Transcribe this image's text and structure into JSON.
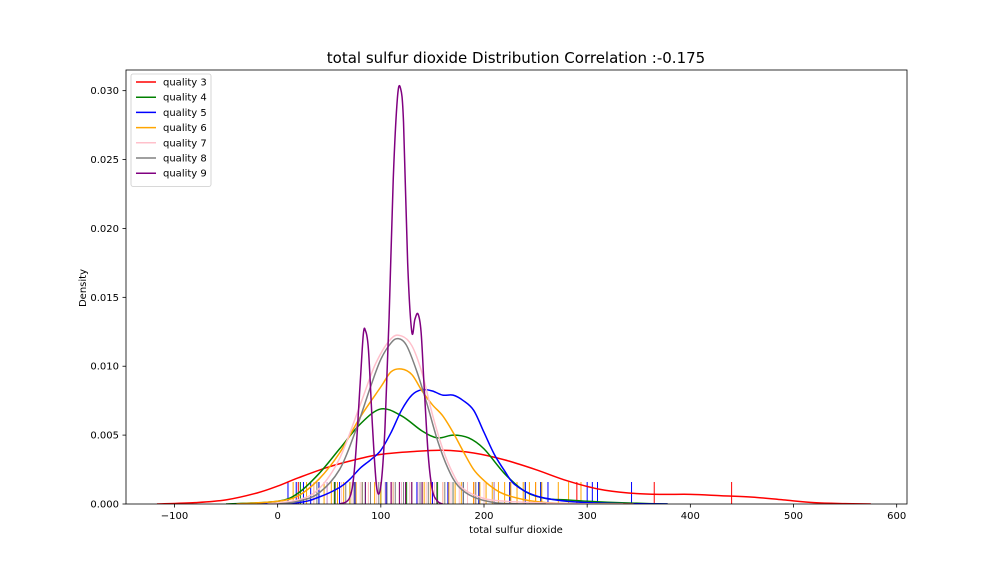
{
  "chart_data": {
    "type": "line",
    "title": "total sulfur dioxide Distribution Correlation :-0.175",
    "xlabel": "total sulfur dioxide",
    "ylabel": "Density",
    "xlim": [
      -147,
      610
    ],
    "ylim": [
      0,
      0.0315
    ],
    "xticks": [
      -100,
      0,
      100,
      200,
      300,
      400,
      500,
      600
    ],
    "xtick_labels": [
      "−100",
      "0",
      "100",
      "200",
      "300",
      "400",
      "500",
      "600"
    ],
    "yticks": [
      0.0,
      0.005,
      0.01,
      0.015,
      0.02,
      0.025,
      0.03
    ],
    "ytick_labels": [
      "0.000",
      "0.005",
      "0.010",
      "0.015",
      "0.020",
      "0.025",
      "0.030"
    ],
    "grid": false,
    "legend_position": "top-left",
    "series": [
      {
        "name": "quality 3",
        "color": "#ff0000",
        "x": [
          -117,
          -80,
          -50,
          -20,
          0,
          20,
          50,
          80,
          100,
          130,
          160,
          190,
          220,
          250,
          280,
          310,
          340,
          370,
          400,
          430,
          460,
          490,
          520,
          550,
          575
        ],
        "y": [
          0.0,
          0.0001,
          0.0003,
          0.0008,
          0.0013,
          0.0019,
          0.0027,
          0.0033,
          0.0036,
          0.0038,
          0.0039,
          0.0037,
          0.0032,
          0.0025,
          0.0017,
          0.0011,
          0.0008,
          0.0007,
          0.0007,
          0.0006,
          0.0005,
          0.0003,
          0.0001,
          3e-05,
          0.0
        ]
      },
      {
        "name": "quality 4",
        "color": "#008000",
        "x": [
          -50,
          0,
          20,
          40,
          60,
          80,
          100,
          120,
          140,
          155,
          170,
          185,
          200,
          220,
          240,
          260,
          280,
          300,
          330,
          360,
          378
        ],
        "y": [
          0.0,
          0.0002,
          0.0008,
          0.0022,
          0.004,
          0.0058,
          0.0069,
          0.0064,
          0.0053,
          0.0048,
          0.005,
          0.0048,
          0.004,
          0.0022,
          0.0009,
          0.0004,
          0.0003,
          0.0002,
          0.0001,
          3e-05,
          0.0
        ]
      },
      {
        "name": "quality 5",
        "color": "#0000ff",
        "x": [
          -20,
          20,
          40,
          60,
          70,
          80,
          90,
          100,
          110,
          120,
          130,
          140,
          150,
          160,
          170,
          180,
          190,
          200,
          210,
          220,
          230,
          250,
          280,
          320,
          360,
          378
        ],
        "y": [
          0.0,
          0.0001,
          0.0005,
          0.0012,
          0.0018,
          0.0026,
          0.0032,
          0.0039,
          0.0052,
          0.0068,
          0.0079,
          0.0083,
          0.0082,
          0.0079,
          0.0079,
          0.0075,
          0.0068,
          0.0052,
          0.0036,
          0.0024,
          0.0014,
          0.0006,
          0.0002,
          5e-05,
          1e-05,
          0.0
        ]
      },
      {
        "name": "quality 6",
        "color": "#ffa500",
        "x": [
          -40,
          0,
          20,
          40,
          60,
          80,
          100,
          110,
          120,
          130,
          140,
          150,
          160,
          170,
          180,
          190,
          200,
          210,
          220,
          240,
          260,
          280,
          300,
          330,
          345
        ],
        "y": [
          0.0,
          0.0002,
          0.0006,
          0.0018,
          0.0037,
          0.0063,
          0.0085,
          0.0096,
          0.0098,
          0.0094,
          0.0082,
          0.0072,
          0.0064,
          0.0052,
          0.0038,
          0.0025,
          0.0017,
          0.0011,
          0.0007,
          0.0003,
          0.0001,
          4e-05,
          2e-05,
          1e-05,
          0.0
        ]
      },
      {
        "name": "quality 7",
        "color": "#ffc0cb",
        "x": [
          -10,
          20,
          40,
          60,
          80,
          95,
          110,
          120,
          130,
          140,
          150,
          160,
          170,
          180,
          200,
          220,
          250,
          280,
          310,
          335
        ],
        "y": [
          0.0,
          0.0003,
          0.0011,
          0.0033,
          0.0072,
          0.0102,
          0.012,
          0.0122,
          0.0115,
          0.0095,
          0.0065,
          0.004,
          0.0022,
          0.0011,
          0.0004,
          0.0002,
          0.0001,
          3e-05,
          1e-05,
          0.0
        ]
      },
      {
        "name": "quality 8",
        "color": "#808080",
        "x": [
          0,
          20,
          40,
          60,
          75,
          90,
          100,
          110,
          117,
          125,
          135,
          145,
          155,
          165,
          175,
          190,
          210,
          230,
          260
        ],
        "y": [
          0.0,
          0.0002,
          0.0008,
          0.0025,
          0.0052,
          0.0085,
          0.0105,
          0.0117,
          0.012,
          0.0115,
          0.0096,
          0.0072,
          0.0046,
          0.0026,
          0.0013,
          0.0005,
          0.0001,
          2e-05,
          0.0
        ]
      },
      {
        "name": "quality 9",
        "color": "#800080",
        "x": [
          60,
          70,
          75,
          80,
          83,
          85,
          88,
          92,
          96,
          100,
          104,
          108,
          112,
          116,
          119,
          122,
          126,
          130,
          133,
          136,
          139,
          142,
          146,
          150,
          155,
          160
        ],
        "y": [
          0.0,
          0.0005,
          0.003,
          0.0088,
          0.0123,
          0.0126,
          0.0112,
          0.0055,
          0.0012,
          0.0013,
          0.0055,
          0.0135,
          0.0235,
          0.0294,
          0.0302,
          0.0277,
          0.0175,
          0.0125,
          0.0134,
          0.0138,
          0.0125,
          0.0085,
          0.0035,
          0.001,
          0.0002,
          0.0
        ]
      }
    ],
    "rug": [
      {
        "color": "#ff0000",
        "x": [
          20,
          55,
          110,
          150,
          190,
          225,
          250,
          290,
          365,
          440
        ]
      },
      {
        "color": "#008000",
        "x": [
          22,
          40,
          55,
          70,
          85,
          100,
          112,
          125,
          140,
          155,
          170,
          180,
          195,
          210,
          225,
          240,
          255
        ]
      },
      {
        "color": "#0000ff",
        "x": [
          10,
          18,
          25,
          32,
          40,
          48,
          60,
          75,
          90,
          105,
          120,
          135,
          150,
          165,
          180,
          195,
          210,
          225,
          240,
          255,
          262,
          300,
          305,
          310,
          343
        ]
      },
      {
        "color": "#ffa500",
        "x": [
          15,
          28,
          35,
          45,
          52,
          58,
          64,
          70,
          76,
          82,
          88,
          94,
          100,
          106,
          112,
          118,
          124,
          130,
          136,
          142,
          148,
          154,
          160,
          166,
          172,
          178,
          184,
          190,
          196,
          202,
          208,
          214,
          220,
          226,
          232,
          238,
          244,
          250,
          256,
          272,
          282,
          294
        ]
      },
      {
        "color": "#ffc0cb",
        "x": [
          35,
          48,
          62,
          72,
          80,
          88,
          96,
          104,
          112,
          120,
          128,
          136,
          144,
          152,
          160,
          168,
          176,
          184,
          192,
          200,
          210
        ]
      },
      {
        "color": "#808080",
        "x": [
          38,
          56,
          66,
          74,
          82,
          90,
          98,
          106,
          114,
          122,
          130,
          138,
          146,
          154,
          162,
          170,
          180,
          192
        ]
      },
      {
        "color": "#800080",
        "x": [
          85,
          110,
          118,
          124,
          130,
          140
        ]
      }
    ]
  }
}
